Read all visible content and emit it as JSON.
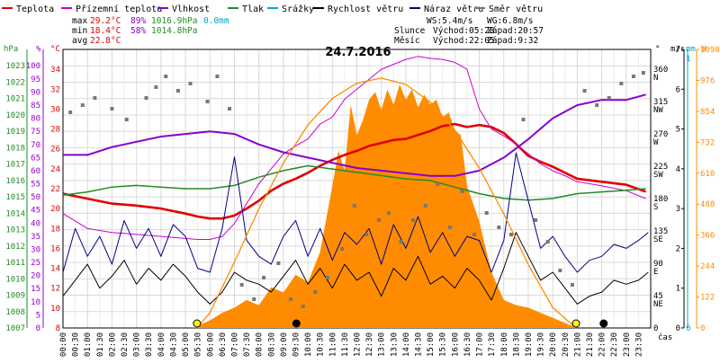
{
  "chart_data": {
    "type": "line",
    "title": "24.7.2016",
    "x_unit_label": "čas",
    "x_ticks": [
      "00:00",
      "00:30",
      "01:00",
      "01:30",
      "02:00",
      "02:30",
      "03:00",
      "03:30",
      "04:00",
      "04:30",
      "05:00",
      "05:30",
      "06:00",
      "06:30",
      "07:00",
      "07:30",
      "08:00",
      "08:30",
      "09:00",
      "09:30",
      "10:00",
      "10:30",
      "11:00",
      "11:30",
      "12:00",
      "12:30",
      "13:00",
      "13:30",
      "14:00",
      "14:30",
      "15:00",
      "15:30",
      "16:00",
      "16:30",
      "17:00",
      "17:30",
      "18:00",
      "18:30",
      "19:00",
      "19:30",
      "20:00",
      "20:30",
      "21:00",
      "21:30",
      "22:00",
      "22:30",
      "23:00",
      "23:30"
    ],
    "axes": {
      "hpa": {
        "label": "hPa",
        "color": "#228B22",
        "range": [
          1007,
          1024
        ],
        "ticks": [
          "1007",
          "1008",
          "1009",
          "1010",
          "1011",
          "1012",
          "1013",
          "1014",
          "1015",
          "1016",
          "1017",
          "1018",
          "1019",
          "1020",
          "1021",
          "1022",
          "1023"
        ]
      },
      "pct": {
        "label": "%",
        "color": "#9400D3",
        "range": [
          0,
          106.25
        ],
        "ticks": [
          "0",
          "5",
          "10",
          "15",
          "20",
          "25",
          "30",
          "35",
          "40",
          "45",
          "50",
          "55",
          "60",
          "65",
          "70",
          "75",
          "80",
          "85",
          "90",
          "95",
          "100"
        ]
      },
      "temp": {
        "label": "°C",
        "color": "#E00000",
        "range": [
          8,
          36
        ],
        "ticks": [
          "8",
          "10",
          "12",
          "14",
          "16",
          "18",
          "20",
          "22",
          "24",
          "26",
          "28",
          "30",
          "32",
          "34"
        ]
      },
      "dir": {
        "label": "°",
        "color": "#000000",
        "ticks": [
          {
            "deg": "360",
            "dir": "N"
          },
          {
            "deg": "315",
            "dir": "NW"
          },
          {
            "deg": "270",
            "dir": "W"
          },
          {
            "deg": "225",
            "dir": "SW"
          },
          {
            "deg": "180",
            "dir": "S"
          },
          {
            "deg": "135",
            "dir": "SE"
          },
          {
            "deg": "90",
            "dir": "E"
          },
          {
            "deg": "45",
            "dir": "NE"
          },
          {
            "deg": "0",
            "dir": ""
          }
        ]
      },
      "wind": {
        "label": "m/s",
        "color": "#000000",
        "range": [
          0,
          7
        ],
        "ticks": [
          "0",
          "1",
          "2",
          "3",
          "4",
          "5",
          "6",
          "7"
        ]
      },
      "rain": {
        "label": "mm",
        "color": "#00AACC",
        "range": [
          0,
          1
        ],
        "ticks": [
          "0",
          "1"
        ]
      },
      "solar": {
        "label": "W",
        "color": "#FF8C00",
        "range": [
          0,
          1098
        ],
        "ticks": [
          "0",
          "122",
          "244",
          "366",
          "488",
          "610",
          "732",
          "854",
          "976",
          "1098"
        ]
      }
    },
    "legend": [
      {
        "name": "Teplota",
        "color": "#E00000"
      },
      {
        "name": "Přízemní teplota",
        "color": "#CC00CC"
      },
      {
        "name": "Vlhkost",
        "color": "#8800CC"
      },
      {
        "name": "Tlak",
        "color": "#228B22"
      },
      {
        "name": "Srážky",
        "color": "#00AACC"
      },
      {
        "name": "Rychlost větru",
        "color": "#000000"
      },
      {
        "name": "Náraz větru",
        "color": "#000088"
      },
      {
        "name": "Směr větru",
        "color": "#777777"
      }
    ],
    "stats": {
      "max": {
        "label": "max",
        "temp": "29.2°C",
        "hum": "89%",
        "press": "1016.9hPa",
        "rain": "0.0mm"
      },
      "min": {
        "label": "min",
        "temp": "18.4°C",
        "hum": "58%",
        "press": "1014.8hPa"
      },
      "avg": {
        "label": "avg",
        "temp": "22.8°C"
      }
    },
    "info": {
      "ws": "WS:5.4m/s",
      "wg": "WG:6.8m/s",
      "sun_label": "Slunce",
      "sun_rise": "Východ:05:28",
      "sun_set": "Západ:20:57",
      "moon_label": "Měsíc",
      "moon_rise": "Východ:22:05",
      "moon_set": "Západ:9:32"
    },
    "series": [
      {
        "key": "temp",
        "axis": "temp",
        "color": "#E00000",
        "width": 2.6,
        "x": [
          0,
          1,
          2,
          3,
          4,
          5,
          5.5,
          6,
          6.5,
          7,
          7.5,
          8,
          8.5,
          9,
          9.5,
          10,
          10.5,
          11,
          11.5,
          12,
          12.5,
          13,
          13.5,
          14,
          14.5,
          15,
          15.5,
          16,
          16.5,
          17,
          17.5,
          18,
          18.5,
          19,
          19.5,
          20,
          20.5,
          21,
          22,
          23,
          23.8
        ],
        "y": [
          21.5,
          21,
          20.5,
          20.3,
          20,
          19.5,
          19.2,
          19,
          19,
          19.3,
          20,
          20.8,
          21.8,
          22.5,
          23,
          23.6,
          24.3,
          24.9,
          25.4,
          25.8,
          26.3,
          26.6,
          26.9,
          27,
          27.4,
          27.8,
          28.3,
          28.5,
          28.2,
          28.4,
          28.2,
          27.6,
          26.5,
          25.3,
          24.7,
          24.2,
          23.6,
          23,
          22.7,
          22.4,
          21.7
        ]
      },
      {
        "key": "ground_temp",
        "axis": "temp",
        "color": "#CC00CC",
        "width": 1,
        "x": [
          0,
          1,
          2,
          3,
          4,
          5,
          5.5,
          6,
          6.5,
          7,
          7.5,
          8,
          8.5,
          9,
          9.5,
          10,
          10.5,
          11,
          11.5,
          12,
          12.5,
          13,
          13.5,
          14,
          14.5,
          15,
          15.5,
          16,
          16.5,
          17,
          17.5,
          18,
          18.5,
          19,
          19.5,
          20,
          20.5,
          21,
          22,
          23,
          23.8
        ],
        "y": [
          19.5,
          18,
          17.6,
          17.4,
          17.2,
          17,
          16.9,
          16.9,
          17.2,
          18.5,
          20.5,
          22.5,
          24,
          25.5,
          26.3,
          27,
          28.5,
          29.2,
          31,
          32,
          33,
          34,
          34.5,
          35,
          35.3,
          35.1,
          35,
          34.7,
          34,
          30,
          28,
          27.3,
          26.5,
          25.5,
          24.5,
          23.8,
          23.3,
          22.7,
          22.3,
          21.8,
          21
        ]
      },
      {
        "key": "humidity",
        "axis": "pct",
        "color": "#8800CC",
        "width": 2,
        "x": [
          0,
          1,
          2,
          3,
          4,
          5,
          6,
          7,
          8,
          9,
          10,
          11,
          12,
          13,
          14,
          15,
          16,
          17,
          18,
          19,
          20,
          21,
          22,
          23,
          23.8
        ],
        "y": [
          66,
          66,
          69,
          71,
          73,
          74,
          75,
          74,
          70,
          67,
          65,
          63,
          61,
          60,
          59,
          58,
          58,
          60,
          65,
          72,
          80,
          85,
          87,
          87,
          89
        ]
      },
      {
        "key": "pressure",
        "axis": "hpa",
        "color": "#228B22",
        "width": 1.5,
        "x": [
          0,
          1,
          2,
          3,
          4,
          5,
          6,
          7,
          8,
          9,
          10,
          11,
          12,
          13,
          14,
          15,
          16,
          17,
          18,
          19,
          20,
          21,
          22,
          23,
          23.8
        ],
        "y": [
          1015.1,
          1015.3,
          1015.6,
          1015.7,
          1015.6,
          1015.5,
          1015.5,
          1015.7,
          1016.2,
          1016.6,
          1016.9,
          1016.7,
          1016.5,
          1016.3,
          1016.1,
          1016.0,
          1015.6,
          1015.2,
          1014.9,
          1014.8,
          1014.9,
          1015.2,
          1015.3,
          1015.4,
          1015.5
        ]
      },
      {
        "key": "wind_speed",
        "axis": "wind",
        "color": "#000000",
        "width": 1,
        "x": [
          0,
          0.5,
          1,
          1.5,
          2,
          2.5,
          3,
          3.5,
          4,
          4.5,
          5,
          5.5,
          6,
          6.5,
          7,
          7.5,
          8,
          8.5,
          9,
          9.5,
          10,
          10.5,
          11,
          11.5,
          12,
          12.5,
          13,
          13.5,
          14,
          14.5,
          15,
          15.5,
          16,
          16.5,
          17,
          17.5,
          18,
          18.5,
          19,
          19.5,
          20,
          20.5,
          21,
          21.5,
          22,
          22.5,
          23,
          23.5,
          23.9
        ],
        "y": [
          0.8,
          1.2,
          1.6,
          1,
          1.3,
          1.7,
          1.1,
          1.5,
          1.2,
          1.6,
          1.3,
          0.9,
          0.6,
          0.9,
          1.4,
          1.2,
          1.1,
          0.9,
          1.3,
          1.7,
          1.1,
          1.5,
          1,
          1.6,
          1.2,
          1.4,
          0.8,
          1.5,
          1.2,
          1.8,
          1.1,
          1.3,
          1,
          1.5,
          1.2,
          0.7,
          1.5,
          2.4,
          1.8,
          1.2,
          1.4,
          1,
          0.6,
          0.8,
          0.9,
          1.2,
          1.1,
          1.2,
          1.4
        ]
      },
      {
        "key": "wind_gust",
        "axis": "wind",
        "color": "#000088",
        "width": 1,
        "x": [
          0,
          0.5,
          1,
          1.5,
          2,
          2.5,
          3,
          3.5,
          4,
          4.5,
          5,
          5.5,
          6,
          6.5,
          7,
          7.5,
          8,
          8.5,
          9,
          9.5,
          10,
          10.5,
          11,
          11.5,
          12,
          12.5,
          13,
          13.5,
          14,
          14.5,
          15,
          15.5,
          16,
          16.5,
          17,
          17.5,
          18,
          18.5,
          19,
          19.5,
          20,
          20.5,
          21,
          21.5,
          22,
          22.5,
          23,
          23.5,
          23.9
        ],
        "y": [
          1.4,
          2.5,
          1.8,
          2.3,
          1.6,
          2.7,
          2,
          2.5,
          1.8,
          2.6,
          2.3,
          1.5,
          1.4,
          2.5,
          4.3,
          2.2,
          1.8,
          1.6,
          2.3,
          2.7,
          1.8,
          2.5,
          1.7,
          2.4,
          2.1,
          2.5,
          1.6,
          2.6,
          2,
          2.8,
          1.9,
          2.4,
          1.8,
          2.3,
          2.2,
          1.4,
          2.2,
          4.4,
          3.2,
          2,
          2.3,
          1.8,
          1.4,
          1.7,
          1.8,
          2.1,
          2,
          2.2,
          2.4
        ]
      },
      {
        "key": "solar",
        "axis": "solar",
        "color": "#FF8C00",
        "fill": true,
        "x": [
          5.3,
          6,
          6.5,
          7,
          7.5,
          8,
          8.5,
          9,
          9.5,
          10,
          10.5,
          11,
          11.25,
          11.5,
          11.75,
          12,
          12.25,
          12.5,
          12.75,
          13,
          13.25,
          13.5,
          13.75,
          14,
          14.25,
          14.5,
          14.75,
          15,
          15.25,
          15.5,
          15.75,
          16,
          16.25,
          16.5,
          17,
          17.5,
          18,
          18.5,
          19,
          19.5,
          20,
          20.5,
          21
        ],
        "y": [
          0,
          30,
          60,
          80,
          110,
          90,
          160,
          140,
          210,
          180,
          300,
          560,
          700,
          620,
          880,
          760,
          820,
          900,
          930,
          860,
          940,
          880,
          960,
          900,
          940,
          870,
          920,
          880,
          900,
          830,
          850,
          780,
          760,
          560,
          420,
          220,
          110,
          90,
          80,
          60,
          40,
          20,
          0
        ]
      },
      {
        "key": "solar_theoretical",
        "axis": "solar",
        "color": "#FF8C00",
        "width": 1.3,
        "x": [
          5.47,
          6,
          7,
          8,
          9,
          10,
          11,
          12,
          13,
          14,
          15,
          16,
          17,
          18,
          19,
          20,
          20.95
        ],
        "y": [
          0,
          60,
          260,
          470,
          650,
          800,
          905,
          965,
          985,
          960,
          890,
          780,
          630,
          450,
          250,
          80,
          0
        ]
      },
      {
        "key": "wind_dir",
        "axis": "dir",
        "color": "#777777",
        "type": "scatter",
        "x": [
          0.3,
          0.8,
          1.3,
          2,
          2.6,
          3.4,
          3.8,
          4.2,
          4.7,
          5.2,
          5.9,
          6.3,
          6.8,
          7.3,
          7.8,
          8.2,
          8.8,
          9.3,
          9.8,
          10.3,
          10.8,
          11.4,
          11.9,
          12.4,
          12.9,
          13.3,
          13.8,
          14.3,
          14.8,
          15.3,
          15.8,
          16.3,
          16.8,
          17.3,
          17.8,
          18.3,
          18.8,
          19.3,
          19.8,
          20.3,
          20.8,
          21.3,
          21.8,
          22.3,
          22.8,
          23.3,
          23.7
        ],
        "y": [
          300,
          310,
          320,
          305,
          290,
          320,
          335,
          350,
          330,
          340,
          315,
          350,
          305,
          60,
          40,
          70,
          90,
          40,
          30,
          50,
          70,
          110,
          170,
          130,
          150,
          160,
          120,
          150,
          170,
          200,
          140,
          190,
          130,
          160,
          140,
          130,
          290,
          150,
          120,
          80,
          60,
          330,
          310,
          320,
          340,
          350,
          355
        ]
      }
    ],
    "day_markers": [
      {
        "type": "sunrise",
        "x": 5.47,
        "color": "#FFFF00"
      },
      {
        "type": "moonset",
        "x": 9.53,
        "color": "#000000"
      },
      {
        "type": "sunset",
        "x": 20.95,
        "color": "#FFFF00"
      },
      {
        "type": "moonrise",
        "x": 22.08,
        "color": "#000000"
      }
    ]
  }
}
